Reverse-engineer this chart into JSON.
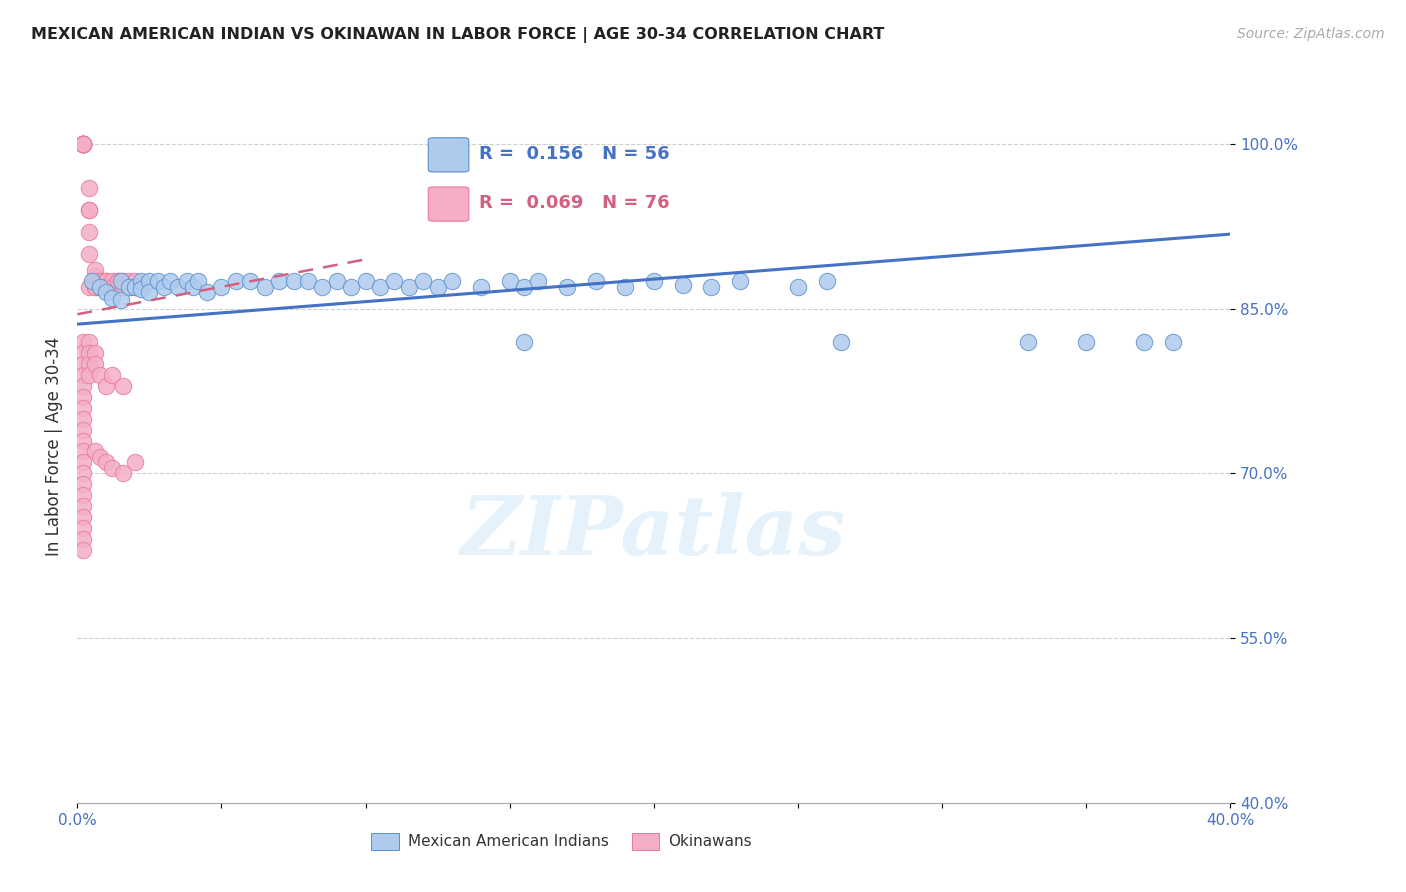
{
  "title": "MEXICAN AMERICAN INDIAN VS OKINAWAN IN LABOR FORCE | AGE 30-34 CORRELATION CHART",
  "source": "Source: ZipAtlas.com",
  "ylabel": "In Labor Force | Age 30-34",
  "xlim": [
    0.0,
    0.4
  ],
  "ylim": [
    0.4,
    1.05
  ],
  "xticks": [
    0.0,
    0.05,
    0.1,
    0.15,
    0.2,
    0.25,
    0.3,
    0.35,
    0.4
  ],
  "yticks": [
    0.4,
    0.55,
    0.7,
    0.85,
    1.0
  ],
  "yticklabels": [
    "40.0%",
    "55.0%",
    "70.0%",
    "85.0%",
    "100.0%"
  ],
  "blue_R": 0.156,
  "blue_N": 56,
  "pink_R": 0.069,
  "pink_N": 76,
  "blue_color": "#aecbee",
  "pink_color": "#f4afc5",
  "blue_edge_color": "#5b8fc9",
  "pink_edge_color": "#e8799e",
  "blue_line_color": "#4472c4",
  "pink_line_color": "#d46080",
  "blue_scatter_x": [
    0.005,
    0.008,
    0.01,
    0.012,
    0.015,
    0.015,
    0.018,
    0.02,
    0.022,
    0.022,
    0.025,
    0.025,
    0.028,
    0.03,
    0.032,
    0.035,
    0.038,
    0.04,
    0.042,
    0.045,
    0.05,
    0.055,
    0.06,
    0.065,
    0.07,
    0.075,
    0.08,
    0.085,
    0.09,
    0.095,
    0.1,
    0.105,
    0.11,
    0.115,
    0.12,
    0.125,
    0.13,
    0.14,
    0.15,
    0.155,
    0.16,
    0.17,
    0.18,
    0.19,
    0.2,
    0.21,
    0.22,
    0.23,
    0.25,
    0.26,
    0.155,
    0.265,
    0.33,
    0.35,
    0.37,
    0.38
  ],
  "blue_scatter_y": [
    0.875,
    0.87,
    0.865,
    0.86,
    0.858,
    0.875,
    0.87,
    0.87,
    0.875,
    0.868,
    0.875,
    0.865,
    0.875,
    0.87,
    0.875,
    0.87,
    0.875,
    0.87,
    0.875,
    0.865,
    0.87,
    0.875,
    0.875,
    0.87,
    0.875,
    0.875,
    0.875,
    0.87,
    0.875,
    0.87,
    0.875,
    0.87,
    0.875,
    0.87,
    0.875,
    0.87,
    0.875,
    0.87,
    0.875,
    0.87,
    0.875,
    0.87,
    0.875,
    0.87,
    0.875,
    0.872,
    0.87,
    0.875,
    0.87,
    0.875,
    0.82,
    0.82,
    0.82,
    0.82,
    0.82,
    0.82
  ],
  "pink_scatter_x": [
    0.002,
    0.002,
    0.002,
    0.002,
    0.002,
    0.002,
    0.002,
    0.002,
    0.002,
    0.002,
    0.002,
    0.004,
    0.004,
    0.004,
    0.004,
    0.004,
    0.004,
    0.006,
    0.006,
    0.006,
    0.006,
    0.006,
    0.008,
    0.008,
    0.008,
    0.01,
    0.01,
    0.01,
    0.01,
    0.012,
    0.012,
    0.014,
    0.014,
    0.014,
    0.016,
    0.016,
    0.018,
    0.018,
    0.02,
    0.02,
    0.002,
    0.002,
    0.002,
    0.002,
    0.002,
    0.002,
    0.002,
    0.002,
    0.002,
    0.002,
    0.002,
    0.002,
    0.002,
    0.002,
    0.002,
    0.002,
    0.002,
    0.002,
    0.002,
    0.002,
    0.004,
    0.004,
    0.004,
    0.004,
    0.006,
    0.006,
    0.008,
    0.01,
    0.012,
    0.016,
    0.006,
    0.008,
    0.01,
    0.012,
    0.016,
    0.02
  ],
  "pink_scatter_y": [
    1.0,
    1.0,
    1.0,
    1.0,
    1.0,
    1.0,
    1.0,
    1.0,
    1.0,
    1.0,
    1.0,
    0.96,
    0.94,
    0.92,
    0.9,
    0.87,
    0.94,
    0.87,
    0.875,
    0.88,
    0.885,
    0.87,
    0.875,
    0.875,
    0.87,
    0.875,
    0.875,
    0.87,
    0.87,
    0.875,
    0.87,
    0.875,
    0.87,
    0.875,
    0.875,
    0.87,
    0.875,
    0.87,
    0.875,
    0.87,
    0.82,
    0.81,
    0.8,
    0.79,
    0.78,
    0.77,
    0.76,
    0.75,
    0.74,
    0.73,
    0.72,
    0.71,
    0.7,
    0.69,
    0.68,
    0.67,
    0.66,
    0.65,
    0.64,
    0.63,
    0.82,
    0.81,
    0.8,
    0.79,
    0.81,
    0.8,
    0.79,
    0.78,
    0.79,
    0.78,
    0.72,
    0.715,
    0.71,
    0.705,
    0.7,
    0.71
  ],
  "blue_trend_x": [
    0.0,
    0.4
  ],
  "blue_trend_y": [
    0.836,
    0.918
  ],
  "pink_trend_x": [
    0.0,
    0.1
  ],
  "pink_trend_y": [
    0.845,
    0.895
  ],
  "watermark": "ZIPatlas",
  "background_color": "#ffffff",
  "grid_color": "#d0d0d0"
}
